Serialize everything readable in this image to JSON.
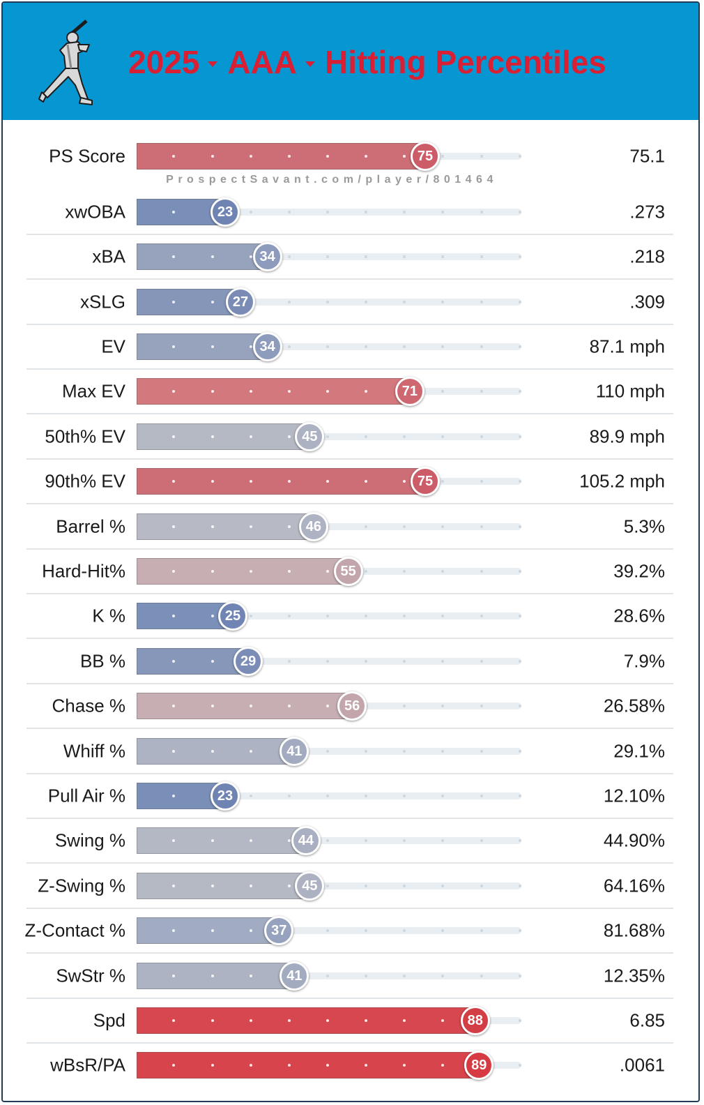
{
  "header": {
    "year": "2025",
    "level": "AAA",
    "title": "Hitting Percentiles",
    "logo_icon": "batter-silhouette-icon"
  },
  "watermark": "ProspectSavant.com/player/801464",
  "chart_data": {
    "type": "bar",
    "orientation": "horizontal",
    "title": "2025 AAA Hitting Percentiles",
    "xlim": [
      0,
      100
    ],
    "categories": [
      "PS Score",
      "xwOBA",
      "xBA",
      "xSLG",
      "EV",
      "Max EV",
      "50th% EV",
      "90th% EV",
      "Barrel %",
      "Hard-Hit%",
      "K %",
      "BB %",
      "Chase %",
      "Whiff %",
      "Pull Air %",
      "Swing %",
      "Z-Swing %",
      "Z-Contact %",
      "SwStr %",
      "Spd",
      "wBsR/PA"
    ],
    "percentiles": [
      75,
      23,
      34,
      27,
      34,
      71,
      45,
      75,
      46,
      55,
      25,
      29,
      56,
      41,
      23,
      44,
      45,
      37,
      41,
      88,
      89
    ],
    "stat_values": [
      "75.1",
      ".273",
      ".218",
      ".309",
      "87.1 mph",
      "110 mph",
      "89.9 mph",
      "105.2 mph",
      "5.3%",
      "39.2%",
      "28.6%",
      "7.9%",
      "26.58%",
      "29.1%",
      "12.10%",
      "44.90%",
      "64.16%",
      "81.68%",
      "12.35%",
      "6.85",
      ".0061"
    ],
    "colors": {
      "bar": [
        "#cd6e76",
        "#7a8fb8",
        "#97a3bd",
        "#8596b9",
        "#97a3bd",
        "#d3787c",
        "#b5b9c4",
        "#cd6e76",
        "#b7bac4",
        "#c6aeb2",
        "#7b90b8",
        "#8697ba",
        "#c6aeb3",
        "#adb3c2",
        "#7a8fb8",
        "#b3b8c4",
        "#b5b9c4",
        "#a1abc1",
        "#adb3c2",
        "#d6474f",
        "#d8444b"
      ],
      "knob": [
        "#cc5d68",
        "#6f84b3",
        "#8d9bbd",
        "#7a8bb6",
        "#8d9bbd",
        "#cf6770",
        "#acb2c1",
        "#cc5d68",
        "#adb3c2",
        "#c3a6ab",
        "#7085b4",
        "#7b8cb7",
        "#c3a6ac",
        "#a3abc0",
        "#6f84b3",
        "#aab0c1",
        "#acb2c1",
        "#97a3be",
        "#a3abc0",
        "#d33d46",
        "#d63a42"
      ]
    }
  }
}
